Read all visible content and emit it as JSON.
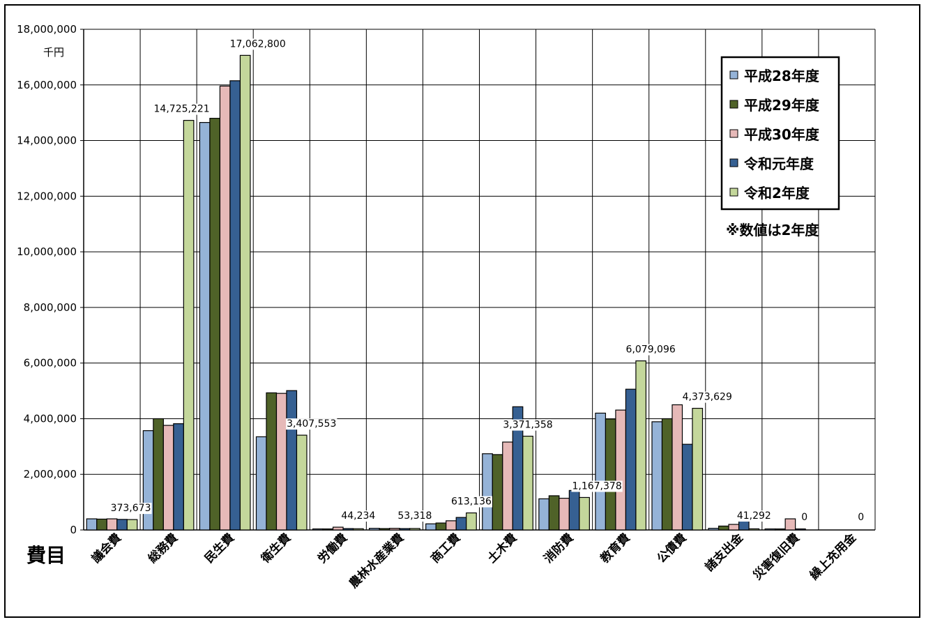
{
  "chart_data": {
    "type": "bar",
    "unit_label": "千円",
    "xlabel": "費目",
    "note": "※数値は2年度",
    "ylim": [
      0,
      18000000
    ],
    "ytick_step": 2000000,
    "ytick_labels": [
      "0",
      "2,000,000",
      "4,000,000",
      "6,000,000",
      "8,000,000",
      "10,000,000",
      "12,000,000",
      "14,000,000",
      "16,000,000",
      "18,000,000"
    ],
    "grid": true,
    "legend_position": "top-right",
    "categories": [
      "議会費",
      "総務費",
      "民生費",
      "衛生費",
      "労働費",
      "農林水産業費",
      "商工費",
      "土木費",
      "消防費",
      "教育費",
      "公債費",
      "諸支出金",
      "災害復旧費",
      "繰上充用金"
    ],
    "series": [
      {
        "name": "平成28年度",
        "color": "#95b3d7",
        "values": [
          400000,
          3570000,
          14650000,
          3350000,
          10000,
          60000,
          220000,
          2740000,
          1120000,
          4200000,
          3890000,
          60000,
          20000,
          0
        ]
      },
      {
        "name": "平成29年度",
        "color": "#4f6228",
        "values": [
          390000,
          4000000,
          14800000,
          4930000,
          20000,
          50000,
          250000,
          2710000,
          1230000,
          3990000,
          4000000,
          140000,
          10000,
          0
        ]
      },
      {
        "name": "平成30年度",
        "color": "#e6b9b8",
        "values": [
          400000,
          3760000,
          15960000,
          4910000,
          100000,
          60000,
          330000,
          3160000,
          1140000,
          4310000,
          4500000,
          200000,
          400000,
          0
        ]
      },
      {
        "name": "令和元年度",
        "color": "#366092",
        "values": [
          380000,
          3820000,
          16150000,
          5010000,
          50000,
          50000,
          450000,
          4430000,
          1420000,
          5060000,
          3080000,
          430000,
          10000,
          0
        ]
      },
      {
        "name": "令和2年度",
        "color": "#c4d79b",
        "values": [
          373673,
          14725221,
          17062800,
          3407553,
          44234,
          53318,
          613136,
          3371358,
          1167378,
          6079096,
          4373629,
          41292,
          0,
          0
        ]
      }
    ],
    "data_labels": [
      "373,673",
      "14,725,221",
      "17,062,800",
      "3,407,553",
      "44,234",
      "53,318",
      "613,136",
      "3,371,358",
      "1,167,378",
      "6,079,096",
      "4,373,629",
      "41,292",
      "0",
      "0"
    ]
  }
}
